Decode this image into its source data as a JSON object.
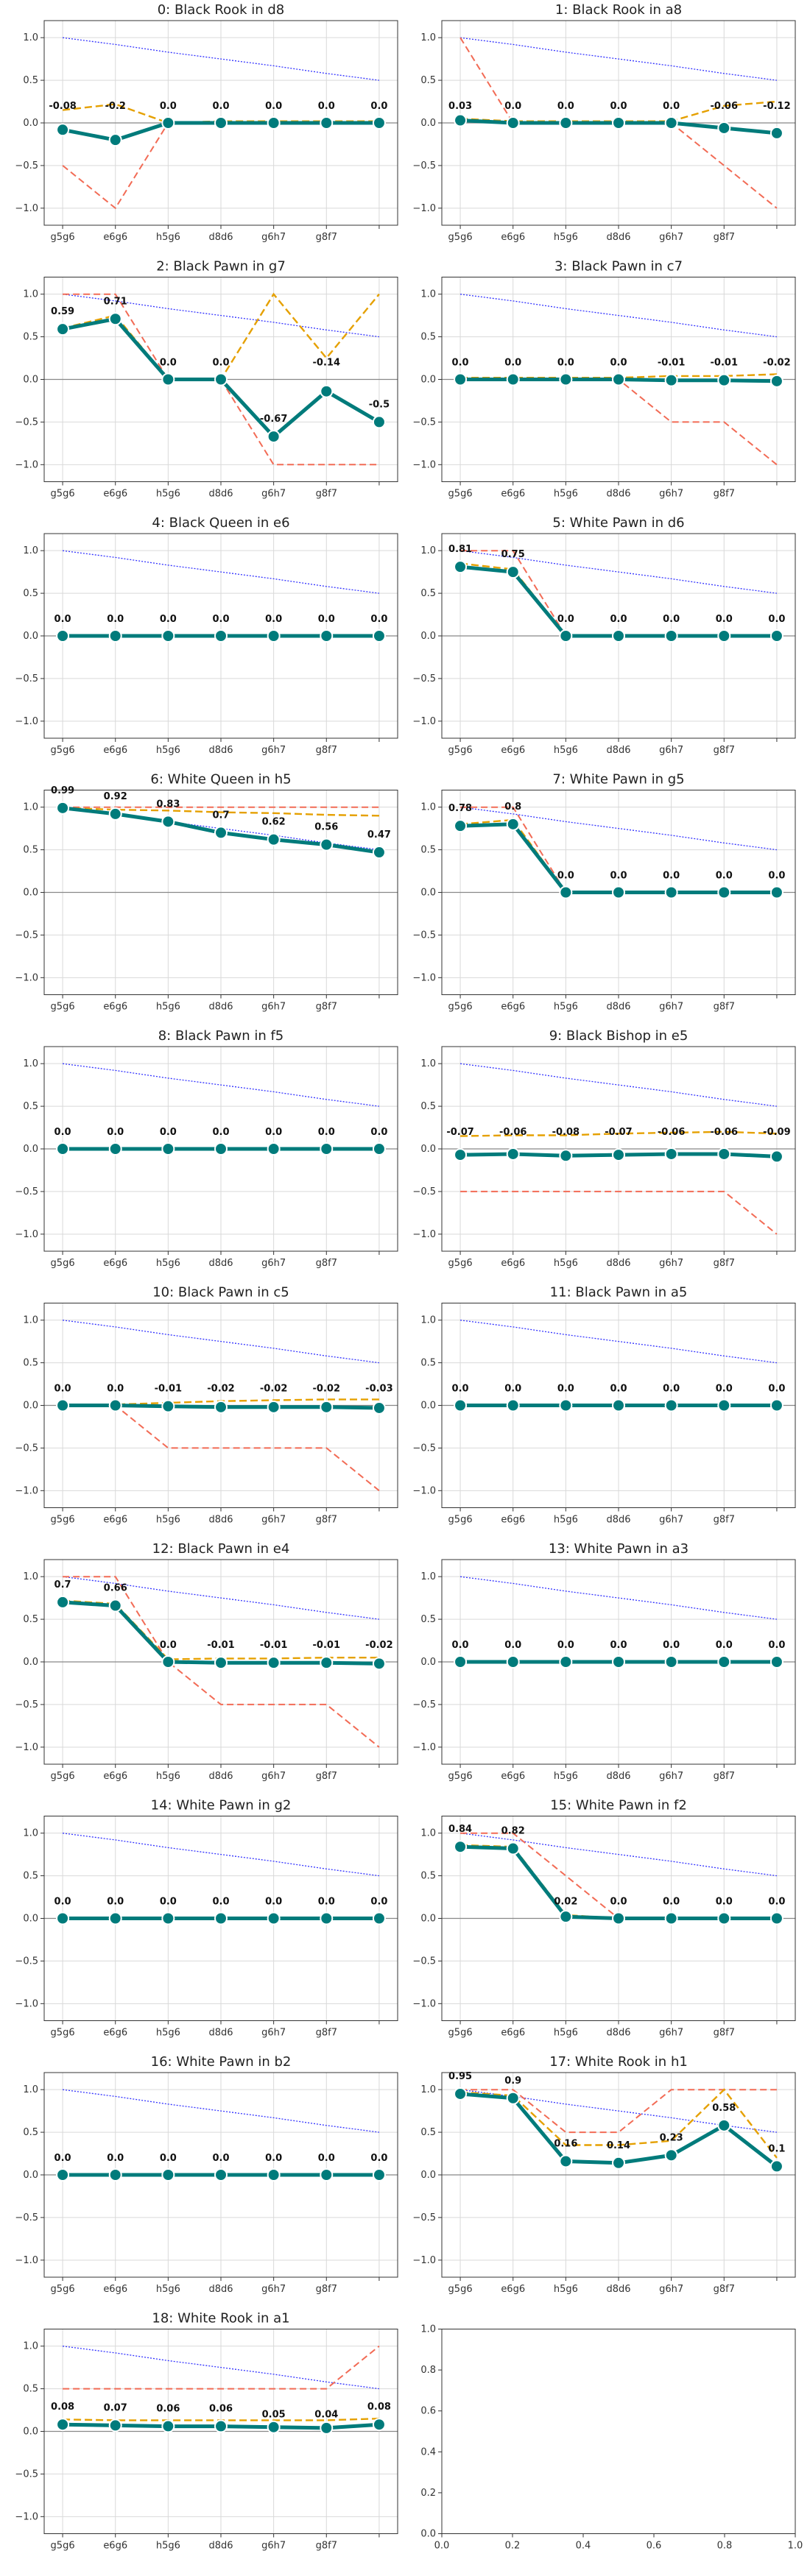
{
  "figure": {
    "columns": 2,
    "rows": 10
  },
  "styles": {
    "main_color": "#007b7b",
    "blue_color": "#3333ff",
    "orange_color": "#e5a000",
    "red_color": "#f26b55",
    "grid_color": "#d9d9d9",
    "zero_color": "#888888"
  },
  "chart_data": [
    {
      "type": "line",
      "title": "0: Black Rook in d8",
      "categories": [
        "g5g6",
        "e6g6",
        "h5g6",
        "d8d6",
        "g6h7",
        "g8f7",
        ""
      ],
      "ylim": [
        -1.2,
        1.2
      ],
      "yticks": [
        -1.0,
        -0.5,
        0.0,
        0.5,
        1.0
      ],
      "grid": true,
      "main": [
        -0.08,
        -0.2,
        0.0,
        0.0,
        0.0,
        0.0,
        0.0
      ],
      "main_labels": [
        "-0.08",
        "-0.2",
        "0.0",
        "0.0",
        "0.0",
        "0.0",
        "0.0"
      ],
      "blue": [
        1.0,
        0.92,
        0.83,
        0.75,
        0.67,
        0.58,
        0.5
      ],
      "orange": [
        0.15,
        0.22,
        0.0,
        0.02,
        0.02,
        0.02,
        0.02
      ],
      "red": [
        -0.5,
        -1.0,
        0.0,
        0.0,
        0.0,
        0.0,
        0.0
      ]
    },
    {
      "type": "line",
      "title": "1: Black Rook in a8",
      "categories": [
        "g5g6",
        "e6g6",
        "h5g6",
        "d8d6",
        "g6h7",
        "g8f7",
        ""
      ],
      "ylim": [
        -1.2,
        1.2
      ],
      "yticks": [
        -1.0,
        -0.5,
        0.0,
        0.5,
        1.0
      ],
      "grid": true,
      "main": [
        0.03,
        0.0,
        0.0,
        0.0,
        0.0,
        -0.06,
        -0.12
      ],
      "main_labels": [
        "0.03",
        "0.0",
        "0.0",
        "0.0",
        "0.0",
        "-0.06",
        "-0.12"
      ],
      "blue": [
        1.0,
        0.92,
        0.83,
        0.75,
        0.67,
        0.58,
        0.5
      ],
      "orange": [
        0.05,
        0.02,
        0.02,
        0.02,
        0.02,
        0.2,
        0.25
      ],
      "red": [
        1.0,
        0.0,
        0.0,
        0.0,
        0.0,
        -0.5,
        -1.0
      ]
    },
    {
      "type": "line",
      "title": "2: Black Pawn in g7",
      "categories": [
        "g5g6",
        "e6g6",
        "h5g6",
        "d8d6",
        "g6h7",
        "g8f7",
        ""
      ],
      "ylim": [
        -1.2,
        1.2
      ],
      "yticks": [
        -1.0,
        -0.5,
        0.0,
        0.5,
        1.0
      ],
      "grid": true,
      "main": [
        0.59,
        0.71,
        0.0,
        0.0,
        -0.67,
        -0.14,
        -0.5
      ],
      "main_labels": [
        "0.59",
        "0.71",
        "0.0",
        "0.0",
        "-0.67",
        "-0.14",
        "-0.5"
      ],
      "blue": [
        1.0,
        0.92,
        0.83,
        0.75,
        0.67,
        0.58,
        0.5
      ],
      "orange": [
        0.6,
        0.75,
        0.0,
        0.0,
        1.0,
        0.25,
        1.0
      ],
      "red": [
        1.0,
        1.0,
        0.0,
        0.0,
        -1.0,
        -1.0,
        -1.0
      ]
    },
    {
      "type": "line",
      "title": "3: Black Pawn in c7",
      "categories": [
        "g5g6",
        "e6g6",
        "h5g6",
        "d8d6",
        "g6h7",
        "g8f7",
        ""
      ],
      "ylim": [
        -1.2,
        1.2
      ],
      "yticks": [
        -1.0,
        -0.5,
        0.0,
        0.5,
        1.0
      ],
      "grid": true,
      "main": [
        0.0,
        0.0,
        0.0,
        0.0,
        -0.01,
        -0.01,
        -0.02
      ],
      "main_labels": [
        "0.0",
        "0.0",
        "0.0",
        "0.0",
        "-0.01",
        "-0.01",
        "-0.02"
      ],
      "blue": [
        1.0,
        0.92,
        0.83,
        0.75,
        0.67,
        0.58,
        0.5
      ],
      "orange": [
        0.02,
        0.02,
        0.02,
        0.02,
        0.04,
        0.04,
        0.06
      ],
      "red": [
        0.0,
        0.0,
        0.0,
        0.0,
        -0.5,
        -0.5,
        -1.0
      ]
    },
    {
      "type": "line",
      "title": "4: Black Queen in e6",
      "categories": [
        "g5g6",
        "e6g6",
        "h5g6",
        "d8d6",
        "g6h7",
        "g8f7",
        ""
      ],
      "ylim": [
        -1.2,
        1.2
      ],
      "yticks": [
        -1.0,
        -0.5,
        0.0,
        0.5,
        1.0
      ],
      "grid": true,
      "main": [
        0.0,
        0.0,
        0.0,
        0.0,
        0.0,
        0.0,
        0.0
      ],
      "main_labels": [
        "0.0",
        "0.0",
        "0.0",
        "0.0",
        "0.0",
        "0.0",
        "0.0"
      ],
      "blue": [
        1.0,
        0.92,
        0.83,
        0.75,
        0.67,
        0.58,
        0.5
      ],
      "orange": [
        0.0,
        0.0,
        0.0,
        0.0,
        0.0,
        0.0,
        0.0
      ],
      "red": [
        0.0,
        0.0,
        0.0,
        0.0,
        0.0,
        0.0,
        0.0
      ]
    },
    {
      "type": "line",
      "title": "5: White Pawn in d6",
      "categories": [
        "g5g6",
        "e6g6",
        "h5g6",
        "d8d6",
        "g6h7",
        "g8f7",
        ""
      ],
      "ylim": [
        -1.2,
        1.2
      ],
      "yticks": [
        -1.0,
        -0.5,
        0.0,
        0.5,
        1.0
      ],
      "grid": true,
      "main": [
        0.81,
        0.75,
        0.0,
        0.0,
        0.0,
        0.0,
        0.0
      ],
      "main_labels": [
        "0.81",
        "0.75",
        "0.0",
        "0.0",
        "0.0",
        "0.0",
        "0.0"
      ],
      "blue": [
        1.0,
        0.92,
        0.83,
        0.75,
        0.67,
        0.58,
        0.5
      ],
      "orange": [
        0.85,
        0.78,
        0.0,
        0.0,
        0.0,
        0.0,
        0.0
      ],
      "red": [
        1.0,
        1.0,
        0.0,
        0.0,
        0.0,
        0.0,
        0.0
      ]
    },
    {
      "type": "line",
      "title": "6: White Queen in h5",
      "categories": [
        "g5g6",
        "e6g6",
        "h5g6",
        "d8d6",
        "g6h7",
        "g8f7",
        ""
      ],
      "ylim": [
        -1.2,
        1.2
      ],
      "yticks": [
        -1.0,
        -0.5,
        0.0,
        0.5,
        1.0
      ],
      "grid": true,
      "main": [
        0.99,
        0.92,
        0.83,
        0.7,
        0.62,
        0.56,
        0.47
      ],
      "main_labels": [
        "0.99",
        "0.92",
        "0.83",
        "0.7",
        "0.62",
        "0.56",
        "0.47"
      ],
      "blue": [
        1.0,
        0.92,
        0.83,
        0.75,
        0.67,
        0.58,
        0.5
      ],
      "orange": [
        0.99,
        0.97,
        0.96,
        0.94,
        0.93,
        0.91,
        0.9
      ],
      "red": [
        1.0,
        1.0,
        1.0,
        1.0,
        1.0,
        1.0,
        1.0
      ]
    },
    {
      "type": "line",
      "title": "7: White Pawn in g5",
      "categories": [
        "g5g6",
        "e6g6",
        "h5g6",
        "d8d6",
        "g6h7",
        "g8f7",
        ""
      ],
      "ylim": [
        -1.2,
        1.2
      ],
      "yticks": [
        -1.0,
        -0.5,
        0.0,
        0.5,
        1.0
      ],
      "grid": true,
      "main": [
        0.78,
        0.8,
        0.0,
        0.0,
        0.0,
        0.0,
        0.0
      ],
      "main_labels": [
        "0.78",
        "0.8",
        "0.0",
        "0.0",
        "0.0",
        "0.0",
        "0.0"
      ],
      "blue": [
        1.0,
        0.92,
        0.83,
        0.75,
        0.67,
        0.58,
        0.5
      ],
      "orange": [
        0.8,
        0.85,
        0.0,
        0.0,
        0.0,
        0.0,
        0.0
      ],
      "red": [
        1.0,
        1.0,
        0.0,
        0.0,
        0.0,
        0.0,
        0.0
      ]
    },
    {
      "type": "line",
      "title": "8: Black Pawn in f5",
      "categories": [
        "g5g6",
        "e6g6",
        "h5g6",
        "d8d6",
        "g6h7",
        "g8f7",
        ""
      ],
      "ylim": [
        -1.2,
        1.2
      ],
      "yticks": [
        -1.0,
        -0.5,
        0.0,
        0.5,
        1.0
      ],
      "grid": true,
      "main": [
        0.0,
        0.0,
        0.0,
        0.0,
        0.0,
        0.0,
        0.0
      ],
      "main_labels": [
        "0.0",
        "0.0",
        "0.0",
        "0.0",
        "0.0",
        "0.0",
        "0.0"
      ],
      "blue": [
        1.0,
        0.92,
        0.83,
        0.75,
        0.67,
        0.58,
        0.5
      ],
      "orange": [
        0.0,
        0.0,
        0.0,
        0.0,
        0.0,
        0.0,
        0.0
      ],
      "red": [
        0.0,
        0.0,
        0.0,
        0.0,
        0.0,
        0.0,
        0.0
      ]
    },
    {
      "type": "line",
      "title": "9: Black Bishop in e5",
      "categories": [
        "g5g6",
        "e6g6",
        "h5g6",
        "d8d6",
        "g6h7",
        "g8f7",
        ""
      ],
      "ylim": [
        -1.2,
        1.2
      ],
      "yticks": [
        -1.0,
        -0.5,
        0.0,
        0.5,
        1.0
      ],
      "grid": true,
      "main": [
        -0.07,
        -0.06,
        -0.08,
        -0.07,
        -0.06,
        -0.06,
        -0.09
      ],
      "main_labels": [
        "-0.07",
        "-0.06",
        "-0.08",
        "-0.07",
        "-0.06",
        "-0.06",
        "-0.09"
      ],
      "blue": [
        1.0,
        0.92,
        0.83,
        0.75,
        0.67,
        0.58,
        0.5
      ],
      "orange": [
        0.15,
        0.16,
        0.16,
        0.18,
        0.19,
        0.2,
        0.18
      ],
      "red": [
        -0.5,
        -0.5,
        -0.5,
        -0.5,
        -0.5,
        -0.5,
        -1.0
      ]
    },
    {
      "type": "line",
      "title": "10: Black Pawn in c5",
      "categories": [
        "g5g6",
        "e6g6",
        "h5g6",
        "d8d6",
        "g6h7",
        "g8f7",
        ""
      ],
      "ylim": [
        -1.2,
        1.2
      ],
      "yticks": [
        -1.0,
        -0.5,
        0.0,
        0.5,
        1.0
      ],
      "grid": true,
      "main": [
        0.0,
        0.0,
        -0.01,
        -0.02,
        -0.02,
        -0.02,
        -0.03
      ],
      "main_labels": [
        "0.0",
        "0.0",
        "-0.01",
        "-0.02",
        "-0.02",
        "-0.02",
        "-0.03"
      ],
      "blue": [
        1.0,
        0.92,
        0.83,
        0.75,
        0.67,
        0.58,
        0.5
      ],
      "orange": [
        0.01,
        0.01,
        0.03,
        0.05,
        0.06,
        0.07,
        0.07
      ],
      "red": [
        0.0,
        0.0,
        -0.5,
        -0.5,
        -0.5,
        -0.5,
        -1.0
      ]
    },
    {
      "type": "line",
      "title": "11: Black Pawn in a5",
      "categories": [
        "g5g6",
        "e6g6",
        "h5g6",
        "d8d6",
        "g6h7",
        "g8f7",
        ""
      ],
      "ylim": [
        -1.2,
        1.2
      ],
      "yticks": [
        -1.0,
        -0.5,
        0.0,
        0.5,
        1.0
      ],
      "grid": true,
      "main": [
        0.0,
        0.0,
        0.0,
        0.0,
        0.0,
        0.0,
        0.0
      ],
      "main_labels": [
        "0.0",
        "0.0",
        "0.0",
        "0.0",
        "0.0",
        "0.0",
        "0.0"
      ],
      "blue": [
        1.0,
        0.92,
        0.83,
        0.75,
        0.67,
        0.58,
        0.5
      ],
      "orange": [
        0.01,
        0.01,
        0.01,
        0.01,
        0.01,
        0.01,
        0.01
      ],
      "red": [
        0.0,
        0.0,
        0.0,
        0.0,
        0.0,
        0.0,
        0.0
      ]
    },
    {
      "type": "line",
      "title": "12: Black Pawn in e4",
      "categories": [
        "g5g6",
        "e6g6",
        "h5g6",
        "d8d6",
        "g6h7",
        "g8f7",
        ""
      ],
      "ylim": [
        -1.2,
        1.2
      ],
      "yticks": [
        -1.0,
        -0.5,
        0.0,
        0.5,
        1.0
      ],
      "grid": true,
      "main": [
        0.7,
        0.66,
        0.0,
        -0.01,
        -0.01,
        -0.01,
        -0.02
      ],
      "main_labels": [
        "0.7",
        "0.66",
        "0.0",
        "-0.01",
        "-0.01",
        "-0.01",
        "-0.02"
      ],
      "blue": [
        1.0,
        0.92,
        0.83,
        0.75,
        0.67,
        0.58,
        0.5
      ],
      "orange": [
        0.72,
        0.68,
        0.03,
        0.04,
        0.04,
        0.05,
        0.05
      ],
      "red": [
        1.0,
        1.0,
        0.0,
        -0.5,
        -0.5,
        -0.5,
        -1.0
      ]
    },
    {
      "type": "line",
      "title": "13: White Pawn in a3",
      "categories": [
        "g5g6",
        "e6g6",
        "h5g6",
        "d8d6",
        "g6h7",
        "g8f7",
        ""
      ],
      "ylim": [
        -1.2,
        1.2
      ],
      "yticks": [
        -1.0,
        -0.5,
        0.0,
        0.5,
        1.0
      ],
      "grid": true,
      "main": [
        0.0,
        0.0,
        0.0,
        0.0,
        0.0,
        0.0,
        0.0
      ],
      "main_labels": [
        "0.0",
        "0.0",
        "0.0",
        "0.0",
        "0.0",
        "0.0",
        "0.0"
      ],
      "blue": [
        1.0,
        0.92,
        0.83,
        0.75,
        0.67,
        0.58,
        0.5
      ],
      "orange": [
        0.0,
        0.0,
        0.0,
        0.0,
        0.0,
        0.0,
        0.0
      ],
      "red": [
        0.0,
        0.0,
        0.0,
        0.0,
        0.0,
        0.0,
        0.0
      ]
    },
    {
      "type": "line",
      "title": "14: White Pawn in g2",
      "categories": [
        "g5g6",
        "e6g6",
        "h5g6",
        "d8d6",
        "g6h7",
        "g8f7",
        ""
      ],
      "ylim": [
        -1.2,
        1.2
      ],
      "yticks": [
        -1.0,
        -0.5,
        0.0,
        0.5,
        1.0
      ],
      "grid": true,
      "main": [
        0.0,
        0.0,
        0.0,
        0.0,
        0.0,
        0.0,
        0.0
      ],
      "main_labels": [
        "0.0",
        "0.0",
        "0.0",
        "0.0",
        "0.0",
        "0.0",
        "0.0"
      ],
      "blue": [
        1.0,
        0.92,
        0.83,
        0.75,
        0.67,
        0.58,
        0.5
      ],
      "orange": [
        0.0,
        0.0,
        0.0,
        0.0,
        0.0,
        0.0,
        0.0
      ],
      "red": [
        0.0,
        0.0,
        0.0,
        0.0,
        0.0,
        0.0,
        0.0
      ]
    },
    {
      "type": "line",
      "title": "15: White Pawn in f2",
      "categories": [
        "g5g6",
        "e6g6",
        "h5g6",
        "d8d6",
        "g6h7",
        "g8f7",
        ""
      ],
      "ylim": [
        -1.2,
        1.2
      ],
      "yticks": [
        -1.0,
        -0.5,
        0.0,
        0.5,
        1.0
      ],
      "grid": true,
      "main": [
        0.84,
        0.82,
        0.02,
        0.0,
        0.0,
        0.0,
        0.0
      ],
      "main_labels": [
        "0.84",
        "0.82",
        "0.02",
        "0.0",
        "0.0",
        "0.0",
        "0.0"
      ],
      "blue": [
        1.0,
        0.92,
        0.83,
        0.75,
        0.67,
        0.58,
        0.5
      ],
      "orange": [
        0.86,
        0.84,
        0.04,
        0.0,
        0.0,
        0.0,
        0.0
      ],
      "red": [
        1.0,
        1.0,
        0.5,
        0.0,
        0.0,
        0.0,
        0.0
      ]
    },
    {
      "type": "line",
      "title": "16: White Pawn in b2",
      "categories": [
        "g5g6",
        "e6g6",
        "h5g6",
        "d8d6",
        "g6h7",
        "g8f7",
        ""
      ],
      "ylim": [
        -1.2,
        1.2
      ],
      "yticks": [
        -1.0,
        -0.5,
        0.0,
        0.5,
        1.0
      ],
      "grid": true,
      "main": [
        0.0,
        0.0,
        0.0,
        0.0,
        0.0,
        0.0,
        0.0
      ],
      "main_labels": [
        "0.0",
        "0.0",
        "0.0",
        "0.0",
        "0.0",
        "0.0",
        "0.0"
      ],
      "blue": [
        1.0,
        0.92,
        0.83,
        0.75,
        0.67,
        0.58,
        0.5
      ],
      "orange": [
        0.0,
        0.0,
        0.0,
        0.0,
        0.0,
        0.0,
        0.0
      ],
      "red": [
        0.0,
        0.0,
        0.0,
        0.0,
        0.0,
        0.0,
        0.0
      ]
    },
    {
      "type": "line",
      "title": "17: White Rook in h1",
      "categories": [
        "g5g6",
        "e6g6",
        "h5g6",
        "d8d6",
        "g6h7",
        "g8f7",
        ""
      ],
      "ylim": [
        -1.2,
        1.2
      ],
      "yticks": [
        -1.0,
        -0.5,
        0.0,
        0.5,
        1.0
      ],
      "grid": true,
      "main": [
        0.95,
        0.9,
        0.16,
        0.14,
        0.23,
        0.58,
        0.1
      ],
      "main_labels": [
        "0.95",
        "0.9",
        "0.16",
        "0.14",
        "0.23",
        "0.58",
        "0.1"
      ],
      "blue": [
        1.0,
        0.92,
        0.83,
        0.75,
        0.67,
        0.58,
        0.5
      ],
      "orange": [
        0.97,
        0.93,
        0.35,
        0.35,
        0.4,
        1.0,
        0.2
      ],
      "red": [
        1.0,
        1.0,
        0.5,
        0.5,
        1.0,
        1.0,
        1.0
      ]
    },
    {
      "type": "line",
      "title": "18: White Rook in a1",
      "categories": [
        "g5g6",
        "e6g6",
        "h5g6",
        "d8d6",
        "g6h7",
        "g8f7",
        ""
      ],
      "ylim": [
        -1.2,
        1.2
      ],
      "yticks": [
        -1.0,
        -0.5,
        0.0,
        0.5,
        1.0
      ],
      "grid": true,
      "main": [
        0.08,
        0.07,
        0.06,
        0.06,
        0.05,
        0.04,
        0.08
      ],
      "main_labels": [
        "0.08",
        "0.07",
        "0.06",
        "0.06",
        "0.05",
        "0.04",
        "0.08"
      ],
      "blue": [
        1.0,
        0.92,
        0.83,
        0.75,
        0.67,
        0.58,
        0.5
      ],
      "orange": [
        0.14,
        0.13,
        0.13,
        0.13,
        0.13,
        0.13,
        0.15
      ],
      "red": [
        0.5,
        0.5,
        0.5,
        0.5,
        0.5,
        0.5,
        1.0
      ]
    },
    {
      "type": "line",
      "title": "",
      "categories": [],
      "xlim": [
        0.0,
        1.0
      ],
      "ylim": [
        0.0,
        1.0
      ],
      "xticks": [
        0.0,
        0.2,
        0.4,
        0.6,
        0.8,
        1.0
      ],
      "yticks": [
        0.0,
        0.2,
        0.4,
        0.6,
        0.8,
        1.0
      ],
      "xtick_labels": [
        "0.0",
        "0.2",
        "0.4",
        "0.6",
        "0.8",
        "1.0"
      ],
      "ytick_labels": [
        "0.0",
        "0.2",
        "0.4",
        "0.6",
        "0.8",
        "1.0"
      ],
      "grid": false,
      "empty": true
    }
  ]
}
